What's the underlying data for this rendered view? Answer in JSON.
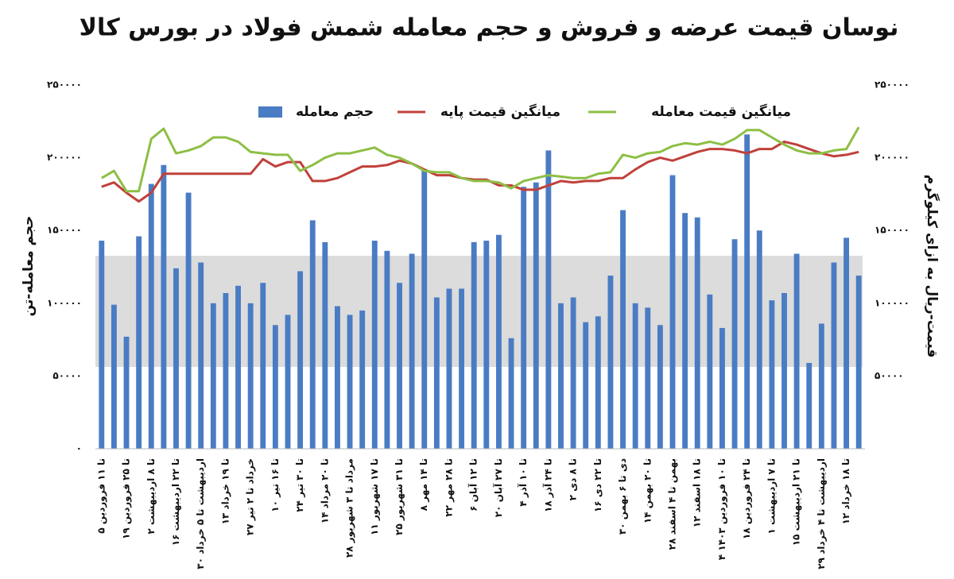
{
  "chart_data": {
    "type": "bar-line",
    "title": "نوسان قیمت عرضه و فروش و حجم معامله شمش فولاد در بورس کالا",
    "ylabel": "حجم معامله-تن",
    "y2label": "قیمت-ریال به ازای کیلوگرم",
    "categories": [
      "۵ تا ۱۱ فروردین",
      null,
      "۱۹ تا ۲۵ فروردین",
      null,
      "۲ تا ۸ اردیبهشت",
      null,
      "۱۶ تا ۲۲ اردیبهشت",
      null,
      "۳۰ اردیبهشت تا ۵ خرداد",
      null,
      "۱۳ تا ۱۹ خرداد",
      null,
      "۲۷ خرداد تا ۲ تیر",
      null,
      "۱۰ تا ۱۶ تیر",
      null,
      "۲۴ تا ۳۰ تیر",
      null,
      "۱۴ تا ۲۰ مرداد",
      null,
      "۲۸ مرداد تا ۳ شهریور",
      null,
      "۱۱ تا ۱۷ شهریور",
      null,
      "۲۵ تا ۳۱ شهریور",
      null,
      "۸ تا ۱۴ مهر",
      null,
      "۲۲ تا ۲۸ مهر",
      null,
      "۶ تا ۱۲ آبان",
      null,
      "۲۰ تا ۲۷ آبان",
      null,
      "۴ تا ۱۰ آذر",
      null,
      "۱۸ تا ۲۴ آذر",
      null,
      "۲ تا ۸ دی",
      null,
      "۱۶ تا ۲۲ دی",
      null,
      "۳۰ دی تا ۶ بهمن",
      null,
      "۱۴ تا ۲۰ بهمن",
      null,
      "۲۸ بهمن تا ۴ اسفند",
      null,
      "۱۲ تا ۱۸ اسفند",
      null,
      "۴ تا ۱۰ فروردین ۱۴۰۳",
      null,
      "۱۸ تا ۲۴ فروردین",
      null,
      "۱ تا ۷ اردیبهشت",
      null,
      "۱۵ تا ۲۱ اردیبهشت",
      null,
      "۲۹ اردیبهشت تا ۴ خرداد",
      null,
      "۱۲ تا ۱۸ خرداد",
      null
    ],
    "series": [
      {
        "name": "حجم معامله",
        "type": "bar",
        "color": "#4a7cc4",
        "values": [
          143000,
          99000,
          77000,
          146000,
          182000,
          195000,
          124000,
          176000,
          128000,
          100000,
          107000,
          112000,
          100000,
          114000,
          85000,
          92000,
          122000,
          157000,
          142000,
          98000,
          92000,
          95000,
          143000,
          136000,
          114000,
          134000,
          191000,
          104000,
          110000,
          110000,
          142000,
          143000,
          147000,
          76000,
          180000,
          183000,
          205000,
          100000,
          104000,
          87000,
          91000,
          119000,
          164000,
          100000,
          97000,
          85000,
          188000,
          162000,
          159000,
          106000,
          83000,
          144000,
          216000,
          150000,
          102000,
          107000,
          134000,
          59000,
          86000,
          128000,
          145000,
          119000
        ]
      },
      {
        "name": "میانگین قیمت پایه",
        "type": "line",
        "axis": "y2",
        "color": "#c0413b",
        "values": [
          180000,
          183000,
          176000,
          170000,
          176000,
          189000,
          189000,
          189000,
          189000,
          189000,
          189000,
          189000,
          189000,
          199000,
          194000,
          197000,
          197000,
          184000,
          184000,
          186000,
          190000,
          194000,
          194000,
          195000,
          198000,
          196000,
          192000,
          188000,
          188000,
          186000,
          185000,
          185000,
          181000,
          181000,
          178000,
          178000,
          181000,
          184000,
          183000,
          184000,
          184000,
          186000,
          186000,
          192000,
          197000,
          200000,
          198000,
          201000,
          204000,
          206000,
          206000,
          205000,
          203000,
          206000,
          206000,
          211000,
          209000,
          206000,
          203000,
          201000,
          202000,
          204000
        ]
      },
      {
        "name": "میانگین قیمت معامله",
        "type": "line",
        "axis": "y2",
        "color": "#8dbf45",
        "values": [
          186000,
          191000,
          177000,
          177000,
          213000,
          220000,
          203000,
          205000,
          208000,
          214000,
          214000,
          211000,
          204000,
          203000,
          202000,
          202000,
          191000,
          195000,
          200000,
          203000,
          203000,
          205000,
          207000,
          202000,
          200000,
          196000,
          191000,
          190000,
          190000,
          186000,
          184000,
          184000,
          183000,
          179000,
          184000,
          186000,
          188000,
          187000,
          186000,
          186000,
          189000,
          190000,
          202000,
          200000,
          203000,
          204000,
          208000,
          210000,
          209000,
          211000,
          209000,
          213000,
          219000,
          219000,
          214000,
          209000,
          205000,
          203000,
          203000,
          205000,
          206000,
          221000
        ]
      }
    ],
    "ylim": [
      0,
      250000
    ],
    "yticks": [
      {
        "value": 0,
        "label": "۰"
      },
      {
        "value": 50000,
        "label": "۵۰۰۰۰"
      },
      {
        "value": 100000,
        "label": "۱۰۰۰۰۰"
      },
      {
        "value": 150000,
        "label": "۱۵۰۰۰۰"
      },
      {
        "value": 200000,
        "label": "۲۰۰۰۰۰"
      },
      {
        "value": 250000,
        "label": "۲۵۰۰۰۰"
      }
    ],
    "y2lim": [
      0,
      250000
    ],
    "y2ticks": [
      {
        "value": 50000,
        "label": "۵۰۰۰۰"
      },
      {
        "value": 100000,
        "label": "۱۰۰۰۰۰"
      },
      {
        "value": 150000,
        "label": "۱۵۰۰۰۰"
      },
      {
        "value": 200000,
        "label": "۲۰۰۰۰۰"
      },
      {
        "value": 250000,
        "label": "۲۵۰۰۰۰"
      }
    ],
    "grid": false,
    "legend": "top"
  }
}
